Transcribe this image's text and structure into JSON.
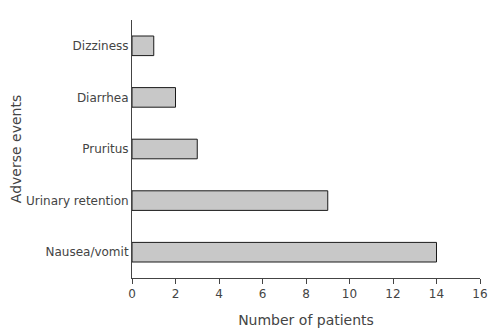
{
  "chart_data": {
    "type": "bar",
    "orientation": "horizontal",
    "categories": [
      "Nausea/vomit",
      "Urinary retention",
      "Pruritus",
      "Diarrhea",
      "Dizziness"
    ],
    "values": [
      14,
      9,
      3,
      2,
      1
    ],
    "color": "#c8c8c8",
    "xlabel": "Number of patients",
    "ylabel": "Adverse events",
    "xlim": [
      0,
      16
    ],
    "xticks": [
      0,
      2,
      4,
      6,
      8,
      10,
      12,
      14,
      16
    ],
    "grid": false
  }
}
